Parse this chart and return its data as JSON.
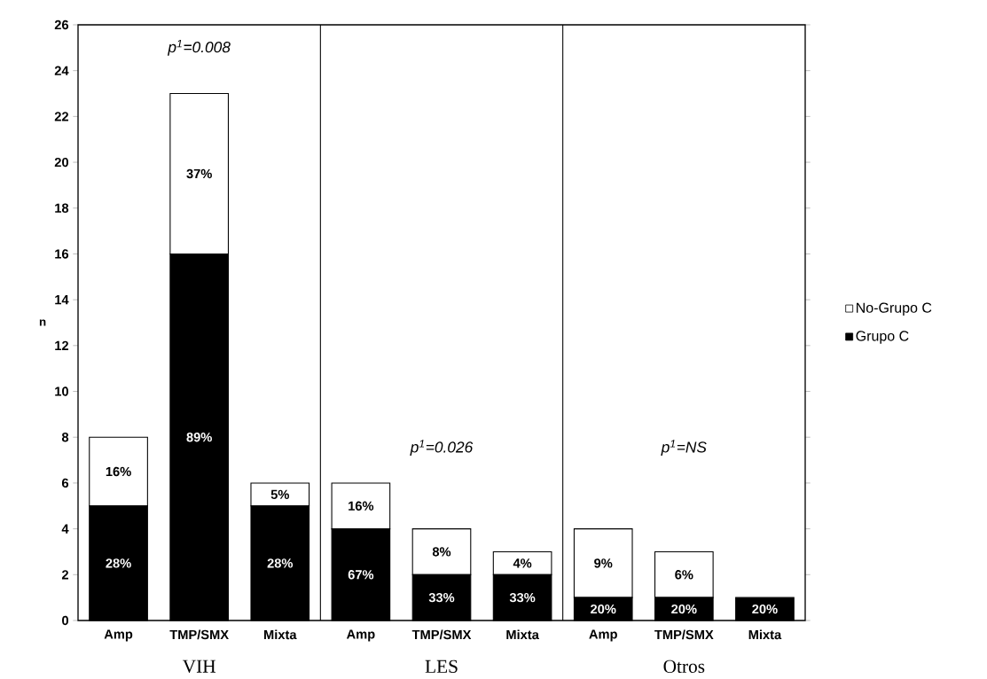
{
  "chart_data": {
    "type": "bar",
    "stacked": true,
    "categories": [
      "Amp",
      "TMP/SMX",
      "Mixta",
      "Amp",
      "TMP/SMX",
      "Mixta",
      "Amp",
      "TMP/SMX",
      "Mixta"
    ],
    "series": [
      {
        "name": "Grupo C",
        "color": "#000000",
        "values": [
          5,
          16,
          5,
          4,
          2,
          2,
          1,
          1,
          1
        ]
      },
      {
        "name": "No-Grupo C",
        "color": "#ffffff",
        "values": [
          3,
          7,
          1,
          2,
          2,
          1,
          3,
          2,
          null
        ]
      }
    ],
    "ylabel": "n",
    "ylim": [
      0,
      26
    ],
    "yticks": [
      0,
      2,
      4,
      6,
      8,
      10,
      12,
      14,
      16,
      18,
      20,
      22,
      24,
      26
    ],
    "legend": "right",
    "annotations": [
      "p$^{1}$=0.008",
      "p$^{1}$=0.026",
      "p$^{1}$=NS",
      "VIH",
      "LES",
      "Otros",
      "28%",
      "16%",
      "89%",
      "37%",
      "28%",
      "5%",
      "67%",
      "16%",
      "33%",
      "8%",
      "33%",
      "4%",
      "20%",
      "9%",
      "20%",
      "6%",
      "20%"
    ]
  }
}
